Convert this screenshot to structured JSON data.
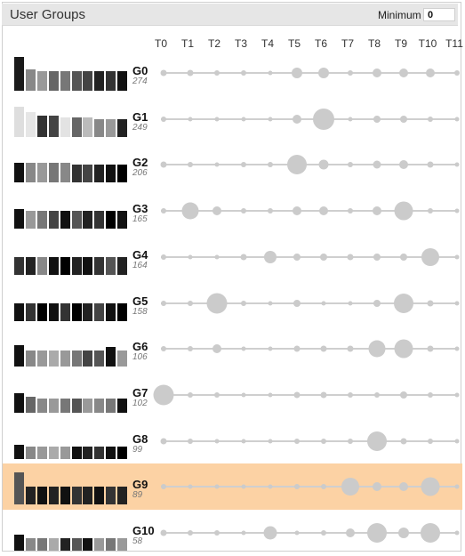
{
  "panel": {
    "title": "User Groups",
    "minimum_label": "Minimum",
    "minimum_value": "0"
  },
  "timesteps": [
    "T0",
    "T1",
    "T2",
    "T3",
    "T4",
    "T5",
    "T6",
    "T7",
    "T8",
    "T9",
    "T10",
    "T11"
  ],
  "groups": [
    {
      "name": "G0",
      "count": "274",
      "highlight": false,
      "bars": [
        {
          "h": 0.95,
          "c": "#1a1a1a"
        },
        {
          "h": 0.6,
          "c": "#888"
        },
        {
          "h": 0.55,
          "c": "#999"
        },
        {
          "h": 0.55,
          "c": "#666"
        },
        {
          "h": 0.55,
          "c": "#777"
        },
        {
          "h": 0.55,
          "c": "#555"
        },
        {
          "h": 0.55,
          "c": "#444"
        },
        {
          "h": 0.55,
          "c": "#222"
        },
        {
          "h": 0.55,
          "c": "#333"
        },
        {
          "h": 0.55,
          "c": "#111"
        }
      ],
      "dots": [
        0.15,
        0.15,
        0.1,
        0.1,
        0.05,
        0.4,
        0.4,
        0.1,
        0.3,
        0.3,
        0.3,
        0.1
      ]
    },
    {
      "name": "G1",
      "count": "249",
      "highlight": false,
      "bars": [
        {
          "h": 0.85,
          "c": "#dedede"
        },
        {
          "h": 0.7,
          "c": "#e6e6e6"
        },
        {
          "h": 0.6,
          "c": "#333"
        },
        {
          "h": 0.6,
          "c": "#444"
        },
        {
          "h": 0.55,
          "c": "#e3e3e3"
        },
        {
          "h": 0.55,
          "c": "#666"
        },
        {
          "h": 0.55,
          "c": "#bbb"
        },
        {
          "h": 0.5,
          "c": "#888"
        },
        {
          "h": 0.5,
          "c": "#999"
        },
        {
          "h": 0.5,
          "c": "#222"
        }
      ],
      "dots": [
        0.1,
        0.05,
        0.05,
        0.05,
        0.05,
        0.3,
        1.0,
        0.05,
        0.2,
        0.2,
        0.1,
        0.05
      ]
    },
    {
      "name": "G2",
      "count": "206",
      "highlight": false,
      "bars": [
        {
          "h": 0.55,
          "c": "#111"
        },
        {
          "h": 0.55,
          "c": "#888"
        },
        {
          "h": 0.55,
          "c": "#999"
        },
        {
          "h": 0.55,
          "c": "#777"
        },
        {
          "h": 0.55,
          "c": "#888"
        },
        {
          "h": 0.5,
          "c": "#333"
        },
        {
          "h": 0.5,
          "c": "#444"
        },
        {
          "h": 0.5,
          "c": "#222"
        },
        {
          "h": 0.5,
          "c": "#111"
        },
        {
          "h": 0.5,
          "c": "#000"
        }
      ],
      "dots": [
        0.15,
        0.1,
        0.05,
        0.1,
        0.1,
        0.9,
        0.35,
        0.1,
        0.25,
        0.3,
        0.15,
        0.05
      ]
    },
    {
      "name": "G3",
      "count": "165",
      "highlight": false,
      "bars": [
        {
          "h": 0.55,
          "c": "#111"
        },
        {
          "h": 0.5,
          "c": "#999"
        },
        {
          "h": 0.5,
          "c": "#777"
        },
        {
          "h": 0.5,
          "c": "#444"
        },
        {
          "h": 0.5,
          "c": "#111"
        },
        {
          "h": 0.5,
          "c": "#555"
        },
        {
          "h": 0.5,
          "c": "#222"
        },
        {
          "h": 0.5,
          "c": "#333"
        },
        {
          "h": 0.5,
          "c": "#000"
        },
        {
          "h": 0.5,
          "c": "#111"
        }
      ],
      "dots": [
        0.1,
        0.75,
        0.3,
        0.1,
        0.1,
        0.3,
        0.3,
        0.1,
        0.3,
        0.85,
        0.1,
        0.05
      ]
    },
    {
      "name": "G4",
      "count": "164",
      "highlight": false,
      "bars": [
        {
          "h": 0.5,
          "c": "#333"
        },
        {
          "h": 0.5,
          "c": "#222"
        },
        {
          "h": 0.5,
          "c": "#888"
        },
        {
          "h": 0.5,
          "c": "#111"
        },
        {
          "h": 0.5,
          "c": "#000"
        },
        {
          "h": 0.5,
          "c": "#222"
        },
        {
          "h": 0.5,
          "c": "#111"
        },
        {
          "h": 0.5,
          "c": "#333"
        },
        {
          "h": 0.5,
          "c": "#555"
        },
        {
          "h": 0.5,
          "c": "#222"
        }
      ],
      "dots": [
        0.1,
        0.05,
        0.05,
        0.15,
        0.5,
        0.2,
        0.2,
        0.15,
        0.2,
        0.2,
        0.8,
        0.05
      ]
    },
    {
      "name": "G5",
      "count": "158",
      "highlight": false,
      "bars": [
        {
          "h": 0.5,
          "c": "#111"
        },
        {
          "h": 0.5,
          "c": "#333"
        },
        {
          "h": 0.5,
          "c": "#000"
        },
        {
          "h": 0.5,
          "c": "#111"
        },
        {
          "h": 0.5,
          "c": "#333"
        },
        {
          "h": 0.5,
          "c": "#000"
        },
        {
          "h": 0.5,
          "c": "#222"
        },
        {
          "h": 0.5,
          "c": "#444"
        },
        {
          "h": 0.5,
          "c": "#111"
        },
        {
          "h": 0.5,
          "c": "#000"
        }
      ],
      "dots": [
        0.1,
        0.1,
        0.95,
        0.1,
        0.05,
        0.2,
        0.05,
        0.05,
        0.2,
        0.9,
        0.15,
        0.05
      ]
    },
    {
      "name": "G6",
      "count": "106",
      "highlight": false,
      "bars": [
        {
          "h": 0.6,
          "c": "#111"
        },
        {
          "h": 0.45,
          "c": "#888"
        },
        {
          "h": 0.45,
          "c": "#999"
        },
        {
          "h": 0.45,
          "c": "#aaa"
        },
        {
          "h": 0.45,
          "c": "#999"
        },
        {
          "h": 0.45,
          "c": "#777"
        },
        {
          "h": 0.45,
          "c": "#444"
        },
        {
          "h": 0.45,
          "c": "#555"
        },
        {
          "h": 0.55,
          "c": "#111"
        },
        {
          "h": 0.45,
          "c": "#999"
        }
      ],
      "dots": [
        0.1,
        0.1,
        0.3,
        0.05,
        0.05,
        0.15,
        0.15,
        0.15,
        0.75,
        0.85,
        0.15,
        0.05
      ]
    },
    {
      "name": "G7",
      "count": "102",
      "highlight": false,
      "bars": [
        {
          "h": 0.55,
          "c": "#111"
        },
        {
          "h": 0.45,
          "c": "#666"
        },
        {
          "h": 0.4,
          "c": "#888"
        },
        {
          "h": 0.4,
          "c": "#999"
        },
        {
          "h": 0.4,
          "c": "#777"
        },
        {
          "h": 0.4,
          "c": "#555"
        },
        {
          "h": 0.4,
          "c": "#999"
        },
        {
          "h": 0.4,
          "c": "#888"
        },
        {
          "h": 0.4,
          "c": "#777"
        },
        {
          "h": 0.4,
          "c": "#111"
        }
      ],
      "dots": [
        0.95,
        0.1,
        0.1,
        0.05,
        0.05,
        0.15,
        0.15,
        0.1,
        0.1,
        0.2,
        0.1,
        0.05
      ]
    },
    {
      "name": "G8",
      "count": "99",
      "highlight": false,
      "bars": [
        {
          "h": 0.4,
          "c": "#111"
        },
        {
          "h": 0.35,
          "c": "#888"
        },
        {
          "h": 0.35,
          "c": "#999"
        },
        {
          "h": 0.35,
          "c": "#aaa"
        },
        {
          "h": 0.35,
          "c": "#999"
        },
        {
          "h": 0.35,
          "c": "#111"
        },
        {
          "h": 0.35,
          "c": "#222"
        },
        {
          "h": 0.35,
          "c": "#333"
        },
        {
          "h": 0.35,
          "c": "#111"
        },
        {
          "h": 0.35,
          "c": "#000"
        }
      ],
      "dots": [
        0.15,
        0.1,
        0.05,
        0.05,
        0.05,
        0.1,
        0.1,
        0.1,
        0.9,
        0.15,
        0.1,
        0.05
      ]
    },
    {
      "name": "G9",
      "count": "89",
      "highlight": true,
      "bars": [
        {
          "h": 0.9,
          "c": "#555"
        },
        {
          "h": 0.5,
          "c": "#222"
        },
        {
          "h": 0.5,
          "c": "#111"
        },
        {
          "h": 0.5,
          "c": "#222"
        },
        {
          "h": 0.5,
          "c": "#111"
        },
        {
          "h": 0.5,
          "c": "#333"
        },
        {
          "h": 0.5,
          "c": "#222"
        },
        {
          "h": 0.5,
          "c": "#111"
        },
        {
          "h": 0.5,
          "c": "#333"
        },
        {
          "h": 0.5,
          "c": "#222"
        }
      ],
      "dots": [
        0.1,
        0.05,
        0.05,
        0.05,
        0.05,
        0.1,
        0.1,
        0.8,
        0.3,
        0.3,
        0.85,
        0.05
      ]
    },
    {
      "name": "G10",
      "count": "58",
      "highlight": false,
      "bars": [
        {
          "h": 0.45,
          "c": "#111"
        },
        {
          "h": 0.35,
          "c": "#888"
        },
        {
          "h": 0.35,
          "c": "#777"
        },
        {
          "h": 0.35,
          "c": "#aaa"
        },
        {
          "h": 0.35,
          "c": "#222"
        },
        {
          "h": 0.35,
          "c": "#555"
        },
        {
          "h": 0.35,
          "c": "#111"
        },
        {
          "h": 0.35,
          "c": "#999"
        },
        {
          "h": 0.35,
          "c": "#777"
        },
        {
          "h": 0.35,
          "c": "#999"
        }
      ],
      "dots": [
        0.15,
        0.1,
        0.1,
        0.05,
        0.55,
        0.05,
        0.1,
        0.3,
        0.9,
        0.4,
        0.9,
        0.05
      ]
    }
  ]
}
